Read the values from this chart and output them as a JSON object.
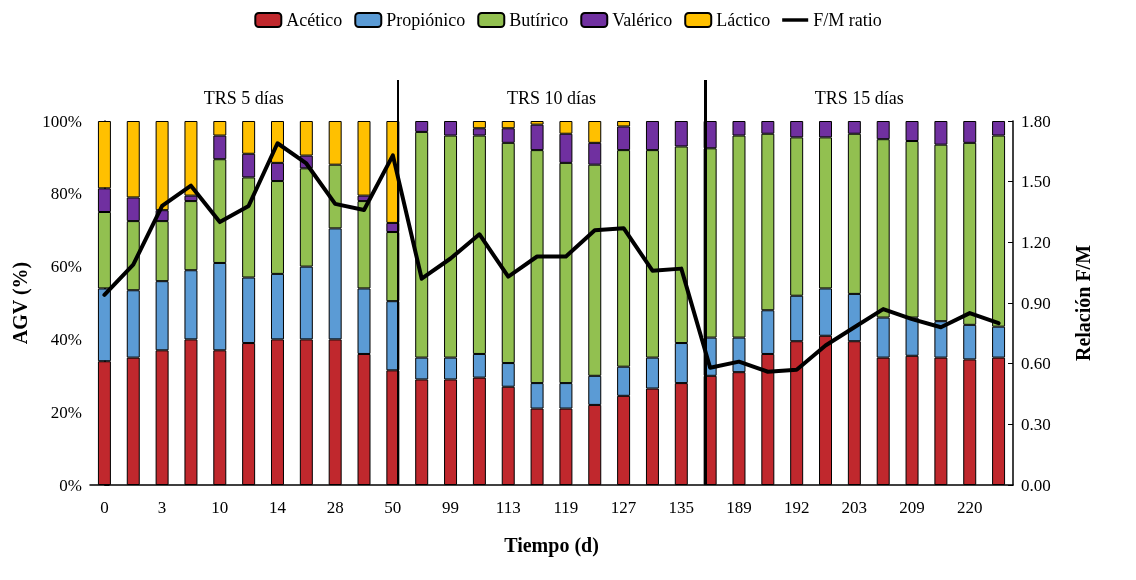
{
  "chart_data": {
    "type": "bar",
    "stacked": true,
    "xlabel": "Tiempo (d)",
    "ylabel": "AGV (%)",
    "y2label": "Relación F/M",
    "categories": [
      "0",
      null,
      "3",
      null,
      "10",
      null,
      "14",
      null,
      "28",
      null,
      "50",
      null,
      "99",
      null,
      "113",
      null,
      "119",
      null,
      "127",
      null,
      "135",
      null,
      "189",
      null,
      "192",
      null,
      "203",
      null,
      "209",
      null,
      "220",
      null
    ],
    "series": [
      {
        "name": "Acético",
        "color": "#c0282d",
        "values": [
          34,
          35,
          37,
          40,
          37,
          39,
          40,
          40,
          40,
          36,
          31.5,
          29,
          29,
          29.5,
          27,
          21,
          21,
          22,
          24.5,
          26.5,
          28,
          30,
          31,
          36,
          39.5,
          41,
          39.5,
          35,
          35.5,
          35,
          34.5,
          35
        ]
      },
      {
        "name": "Propiónico",
        "color": "#5b9bd5",
        "values": [
          20,
          18.5,
          19,
          19,
          24,
          18,
          18,
          20,
          30.5,
          18,
          19,
          6,
          6,
          6.5,
          6.5,
          7,
          7,
          8,
          8,
          8.5,
          11,
          10.5,
          9.5,
          12,
          12.5,
          13,
          13,
          11,
          10.5,
          10,
          9.5,
          8.5
        ]
      },
      {
        "name": "Butírico",
        "color": "#92c050",
        "values": [
          21,
          19,
          16.5,
          19,
          28.5,
          27.5,
          25.5,
          27,
          17.5,
          24,
          19,
          62,
          61,
          60,
          60.5,
          64,
          60.5,
          58,
          59.5,
          57,
          54,
          52,
          55.5,
          48.5,
          43.5,
          41.5,
          44,
          49,
          48.5,
          48.5,
          50,
          52.5
        ]
      },
      {
        "name": "Valérico",
        "color": "#7030a0",
        "values": [
          6.5,
          6.5,
          3,
          1.5,
          6.5,
          6.5,
          5,
          3.5,
          null,
          1.5,
          2.5,
          3,
          4,
          2,
          4,
          7,
          8,
          6,
          6.5,
          8,
          7,
          7.5,
          4,
          3.5,
          4.5,
          4.5,
          3.5,
          5,
          5.5,
          6.5,
          6,
          4
        ]
      },
      {
        "name": "Láctico",
        "color": "#ffc000",
        "values": [
          18.5,
          21,
          24.5,
          20.5,
          4,
          9,
          11.5,
          9.5,
          12,
          20.5,
          28,
          null,
          null,
          2,
          2,
          1,
          3.5,
          6,
          1.5,
          null,
          null,
          null,
          null,
          null,
          null,
          null,
          null,
          null,
          null,
          null,
          null,
          null
        ]
      },
      {
        "name": "F/M ratio",
        "type": "line",
        "axis": "y2",
        "color": "#000000",
        "values": [
          0.94,
          1.09,
          1.38,
          1.48,
          1.3,
          1.38,
          1.69,
          1.59,
          1.39,
          1.36,
          1.63,
          1.02,
          1.12,
          1.24,
          1.03,
          1.13,
          1.13,
          1.26,
          1.27,
          1.06,
          1.07,
          0.58,
          0.61,
          0.56,
          0.57,
          0.69,
          0.78,
          0.87,
          0.82,
          0.78,
          0.85,
          0.8
        ]
      }
    ],
    "ylim": [
      0,
      100
    ],
    "yticks": [
      {
        "value": 0,
        "label": "0%"
      },
      {
        "value": 20,
        "label": "20%"
      },
      {
        "value": 40,
        "label": "40%"
      },
      {
        "value": 60,
        "label": "60%"
      },
      {
        "value": 80,
        "label": "80%"
      },
      {
        "value": 100,
        "label": "100%"
      }
    ],
    "y2lim": [
      0,
      1.8
    ],
    "y2ticks": [
      {
        "value": 0,
        "label": "0.00"
      },
      {
        "value": 0.3,
        "label": "0.30"
      },
      {
        "value": 0.6,
        "label": "0.60"
      },
      {
        "value": 0.9,
        "label": "0.90"
      },
      {
        "value": 1.2,
        "label": "1.20"
      },
      {
        "value": 1.5,
        "label": "1.50"
      },
      {
        "value": 1.8,
        "label": "1.80"
      }
    ],
    "annotations": [
      "TRS 5 días",
      "TRS 10 días",
      "TRS 15 días"
    ],
    "legend": "top",
    "grid": false,
    "marker": "none",
    "line_style": "solid"
  }
}
